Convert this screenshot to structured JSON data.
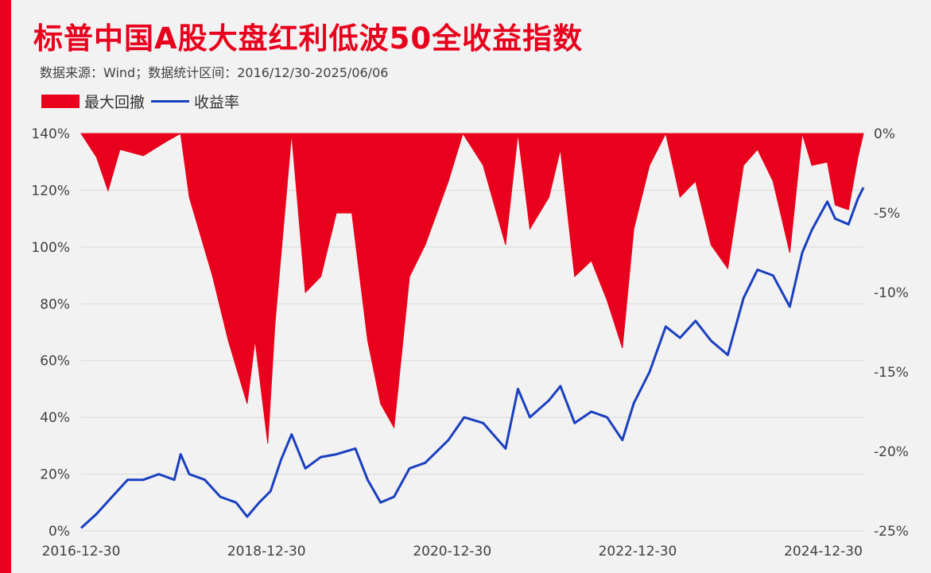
{
  "title": "标普中国A股大盘红利低波50全收益指数",
  "subtitle": "数据来源：Wind；数据统计区间：2016/12/30-2025/06/06",
  "legend": {
    "drawdown_label": "最大回撤",
    "return_label": "收益率"
  },
  "colors": {
    "accent": "#e8001c",
    "line": "#1a3fbf",
    "grid": "#d9d9d9",
    "background": "#f2f2f2"
  },
  "chart_data": {
    "type": "line+area",
    "title": "标普中国A股大盘红利低波50全收益指数",
    "x_axis": {
      "type": "date",
      "range": [
        "2016-12-30",
        "2025-06-06"
      ],
      "ticks": [
        "2016-12-30",
        "2018-12-30",
        "2020-12-30",
        "2022-12-30",
        "2024-12-30"
      ]
    },
    "y_left": {
      "range": [
        0,
        140
      ],
      "unit": "%",
      "ticks": [
        "0%",
        "20%",
        "40%",
        "60%",
        "80%",
        "100%",
        "120%",
        "140%"
      ]
    },
    "y_right": {
      "range": [
        -25,
        0
      ],
      "unit": "%",
      "ticks": [
        "0%",
        "-5%",
        "-10%",
        "-15%",
        "-20%",
        "-25%"
      ]
    },
    "grid": true,
    "legend_position": "top-left",
    "series": [
      {
        "name": "收益率",
        "axis": "left",
        "style": "line",
        "points": [
          [
            "2016-12-30",
            1
          ],
          [
            "2017-03-01",
            6
          ],
          [
            "2017-05-01",
            12
          ],
          [
            "2017-07-01",
            18
          ],
          [
            "2017-09-01",
            18
          ],
          [
            "2017-11-01",
            20
          ],
          [
            "2018-01-01",
            18
          ],
          [
            "2018-01-26",
            27
          ],
          [
            "2018-03-01",
            20
          ],
          [
            "2018-05-01",
            18
          ],
          [
            "2018-07-01",
            12
          ],
          [
            "2018-09-01",
            10
          ],
          [
            "2018-10-15",
            5
          ],
          [
            "2018-12-01",
            10
          ],
          [
            "2019-01-15",
            14
          ],
          [
            "2019-02-25",
            25
          ],
          [
            "2019-04-08",
            34
          ],
          [
            "2019-06-01",
            22
          ],
          [
            "2019-08-01",
            26
          ],
          [
            "2019-10-01",
            27
          ],
          [
            "2019-12-15",
            29
          ],
          [
            "2020-02-01",
            18
          ],
          [
            "2020-03-23",
            10
          ],
          [
            "2020-05-15",
            12
          ],
          [
            "2020-07-15",
            22
          ],
          [
            "2020-09-15",
            24
          ],
          [
            "2020-12-15",
            32
          ],
          [
            "2021-02-15",
            40
          ],
          [
            "2021-05-01",
            38
          ],
          [
            "2021-07-28",
            29
          ],
          [
            "2021-09-15",
            50
          ],
          [
            "2021-11-01",
            40
          ],
          [
            "2022-01-15",
            46
          ],
          [
            "2022-03-01",
            51
          ],
          [
            "2022-04-26",
            38
          ],
          [
            "2022-07-01",
            42
          ],
          [
            "2022-09-01",
            40
          ],
          [
            "2022-10-31",
            32
          ],
          [
            "2022-12-15",
            45
          ],
          [
            "2023-02-15",
            56
          ],
          [
            "2023-04-20",
            72
          ],
          [
            "2023-06-15",
            68
          ],
          [
            "2023-08-15",
            74
          ],
          [
            "2023-10-15",
            67
          ],
          [
            "2023-12-20",
            62
          ],
          [
            "2024-02-20",
            82
          ],
          [
            "2024-04-15",
            92
          ],
          [
            "2024-06-15",
            90
          ],
          [
            "2024-08-20",
            79
          ],
          [
            "2024-10-08",
            98
          ],
          [
            "2024-11-15",
            106
          ],
          [
            "2025-01-15",
            116
          ],
          [
            "2025-02-15",
            110
          ],
          [
            "2025-04-08",
            108
          ],
          [
            "2025-05-15",
            117
          ],
          [
            "2025-06-06",
            121
          ]
        ]
      },
      {
        "name": "最大回撤",
        "axis": "right",
        "style": "area",
        "points": [
          [
            "2016-12-30",
            0
          ],
          [
            "2017-03-01",
            -1.5
          ],
          [
            "2017-04-15",
            -3.6
          ],
          [
            "2017-06-01",
            -1
          ],
          [
            "2017-09-01",
            -1.4
          ],
          [
            "2017-12-01",
            -0.5
          ],
          [
            "2018-01-26",
            0
          ],
          [
            "2018-03-01",
            -4
          ],
          [
            "2018-06-01",
            -9
          ],
          [
            "2018-08-01",
            -13
          ],
          [
            "2018-10-15",
            -17
          ],
          [
            "2018-11-15",
            -13
          ],
          [
            "2019-01-04",
            -19.5
          ],
          [
            "2019-02-01",
            -12
          ],
          [
            "2019-04-08",
            0
          ],
          [
            "2019-06-01",
            -10
          ],
          [
            "2019-08-01",
            -9
          ],
          [
            "2019-10-01",
            -5
          ],
          [
            "2019-12-01",
            -5
          ],
          [
            "2020-02-01",
            -13
          ],
          [
            "2020-03-23",
            -17
          ],
          [
            "2020-05-15",
            -18.5
          ],
          [
            "2020-07-15",
            -9
          ],
          [
            "2020-09-15",
            -7
          ],
          [
            "2020-12-15",
            -3
          ],
          [
            "2021-02-10",
            0
          ],
          [
            "2021-05-01",
            -2
          ],
          [
            "2021-07-28",
            -7
          ],
          [
            "2021-09-15",
            0
          ],
          [
            "2021-11-01",
            -6
          ],
          [
            "2022-01-15",
            -4
          ],
          [
            "2022-03-01",
            -1
          ],
          [
            "2022-04-26",
            -9
          ],
          [
            "2022-07-01",
            -8
          ],
          [
            "2022-09-01",
            -10.5
          ],
          [
            "2022-10-31",
            -13.5
          ],
          [
            "2022-12-15",
            -6
          ],
          [
            "2023-02-15",
            -2
          ],
          [
            "2023-04-20",
            0
          ],
          [
            "2023-06-15",
            -4
          ],
          [
            "2023-08-15",
            -3
          ],
          [
            "2023-10-15",
            -7
          ],
          [
            "2023-12-20",
            -8.5
          ],
          [
            "2024-02-20",
            -2
          ],
          [
            "2024-04-15",
            -1
          ],
          [
            "2024-06-15",
            -3
          ],
          [
            "2024-08-20",
            -7.5
          ],
          [
            "2024-10-08",
            0
          ],
          [
            "2024-11-15",
            -2
          ],
          [
            "2025-01-15",
            -1.8
          ],
          [
            "2025-02-15",
            -4.5
          ],
          [
            "2025-04-08",
            -4.8
          ],
          [
            "2025-05-15",
            -1.5
          ],
          [
            "2025-06-06",
            0
          ]
        ]
      }
    ]
  }
}
